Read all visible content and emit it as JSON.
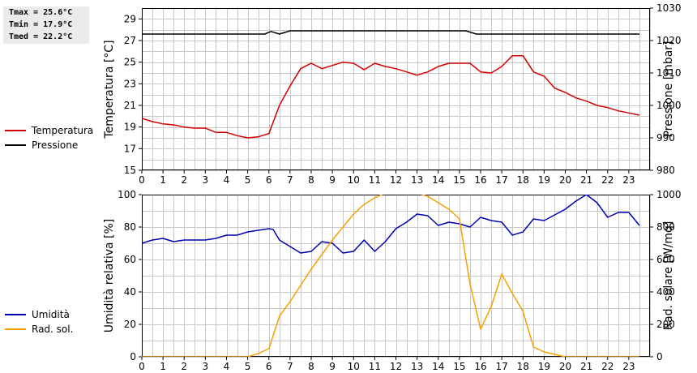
{
  "stats": {
    "tmax": "Tmax = 25.6°C",
    "tmin": "Tmin = 17.9°C",
    "tmed": "Tmed = 22.2°C"
  },
  "colors": {
    "temperatura": "#d40000",
    "pressione": "#000000",
    "umidita": "#0000b4",
    "rad_sol": "#f5a000",
    "grid": "#c8c8c8"
  },
  "legend_top": [
    {
      "label": "Temperatura",
      "color": "#d40000"
    },
    {
      "label": "Pressione",
      "color": "#000000"
    }
  ],
  "legend_bottom": [
    {
      "label": "Umidità",
      "color": "#0000b4"
    },
    {
      "label": "Rad. sol.",
      "color": "#f5a000"
    }
  ],
  "chart_data": [
    {
      "type": "line",
      "title": "",
      "xlabel": "",
      "xlim": [
        0,
        24
      ],
      "x_ticks": [
        0,
        1,
        2,
        3,
        4,
        5,
        6,
        7,
        8,
        9,
        10,
        11,
        12,
        13,
        14,
        15,
        16,
        17,
        18,
        19,
        20,
        21,
        22,
        23
      ],
      "ylabel_left": "Temperatura [°C]",
      "ylim_left": [
        15,
        30
      ],
      "yticks_left": [
        15,
        17,
        19,
        21,
        23,
        25,
        27,
        29
      ],
      "ylabel_right": "Pressione [mbar]",
      "ylim_right": [
        980,
        1030
      ],
      "yticks_right": [
        980,
        990,
        1000,
        1010,
        1020,
        1030
      ],
      "grid": true,
      "series": [
        {
          "name": "Temperatura",
          "axis": "left",
          "color": "#d40000",
          "points": [
            [
              0,
              19.8
            ],
            [
              0.5,
              19.5
            ],
            [
              1,
              19.3
            ],
            [
              1.5,
              19.2
            ],
            [
              2,
              19.0
            ],
            [
              2.5,
              18.9
            ],
            [
              3,
              18.9
            ],
            [
              3.5,
              18.5
            ],
            [
              4,
              18.5
            ],
            [
              4.5,
              18.2
            ],
            [
              5,
              18.0
            ],
            [
              5.5,
              18.1
            ],
            [
              6,
              18.4
            ],
            [
              6.5,
              21.0
            ],
            [
              7,
              22.8
            ],
            [
              7.5,
              24.4
            ],
            [
              8,
              24.9
            ],
            [
              8.5,
              24.4
            ],
            [
              9,
              24.7
            ],
            [
              9.5,
              25.0
            ],
            [
              10,
              24.9
            ],
            [
              10.5,
              24.3
            ],
            [
              11,
              24.9
            ],
            [
              11.5,
              24.6
            ],
            [
              12,
              24.4
            ],
            [
              12.5,
              24.1
            ],
            [
              13,
              23.8
            ],
            [
              13.5,
              24.1
            ],
            [
              14,
              24.6
            ],
            [
              14.5,
              24.9
            ],
            [
              15,
              24.9
            ],
            [
              15.5,
              24.9
            ],
            [
              16,
              24.1
            ],
            [
              16.5,
              24.0
            ],
            [
              17,
              24.6
            ],
            [
              17.5,
              25.6
            ],
            [
              18,
              25.6
            ],
            [
              18.5,
              24.1
            ],
            [
              19,
              23.7
            ],
            [
              19.5,
              22.6
            ],
            [
              20,
              22.2
            ],
            [
              20.5,
              21.7
            ],
            [
              21,
              21.4
            ],
            [
              21.5,
              21.0
            ],
            [
              22,
              20.8
            ],
            [
              22.5,
              20.5
            ],
            [
              23,
              20.3
            ],
            [
              23.5,
              20.1
            ]
          ]
        },
        {
          "name": "Pressione",
          "axis": "right",
          "color": "#000000",
          "points": [
            [
              0,
              1022
            ],
            [
              5.8,
              1022
            ],
            [
              6.1,
              1022.8
            ],
            [
              6.5,
              1022
            ],
            [
              7,
              1023
            ],
            [
              15.3,
              1023
            ],
            [
              15.8,
              1022
            ],
            [
              23.5,
              1022
            ]
          ]
        }
      ]
    },
    {
      "type": "line",
      "title": "",
      "xlabel": "",
      "xlim": [
        0,
        24
      ],
      "x_ticks": [
        0,
        1,
        2,
        3,
        4,
        5,
        6,
        7,
        8,
        9,
        10,
        11,
        12,
        13,
        14,
        15,
        16,
        17,
        18,
        19,
        20,
        21,
        22,
        23
      ],
      "ylabel_left": "Umidità relativa [%]",
      "ylim_left": [
        0,
        100
      ],
      "yticks_left": [
        0,
        20,
        40,
        60,
        80,
        100
      ],
      "ylabel_right": "Rad. solare [W/mq]",
      "ylim_right": [
        0,
        1000
      ],
      "yticks_right": [
        0,
        200,
        400,
        600,
        800,
        1000
      ],
      "grid": true,
      "series": [
        {
          "name": "Umidità",
          "axis": "left",
          "color": "#0000b4",
          "points": [
            [
              0,
              70
            ],
            [
              0.5,
              72
            ],
            [
              1,
              73
            ],
            [
              1.5,
              71
            ],
            [
              2,
              72
            ],
            [
              3,
              72
            ],
            [
              3.5,
              73
            ],
            [
              4,
              75
            ],
            [
              4.5,
              75
            ],
            [
              5,
              77
            ],
            [
              5.5,
              78
            ],
            [
              6,
              79
            ],
            [
              6.2,
              78.5
            ],
            [
              6.5,
              72
            ],
            [
              7,
              68
            ],
            [
              7.5,
              64
            ],
            [
              8,
              65
            ],
            [
              8.5,
              71
            ],
            [
              9,
              70
            ],
            [
              9.5,
              64
            ],
            [
              10,
              65
            ],
            [
              10.5,
              72
            ],
            [
              11,
              65
            ],
            [
              11.5,
              71
            ],
            [
              12,
              79
            ],
            [
              12.5,
              83
            ],
            [
              13,
              88
            ],
            [
              13.5,
              87
            ],
            [
              14,
              81
            ],
            [
              14.5,
              83
            ],
            [
              15,
              82
            ],
            [
              15.5,
              80
            ],
            [
              16,
              86
            ],
            [
              16.5,
              84
            ],
            [
              17,
              83
            ],
            [
              17.5,
              75
            ],
            [
              18,
              77
            ],
            [
              18.5,
              85
            ],
            [
              19,
              84
            ],
            [
              20,
              91
            ],
            [
              20.5,
              96
            ],
            [
              21,
              100
            ],
            [
              21.5,
              95
            ],
            [
              22,
              86
            ],
            [
              22.5,
              89
            ],
            [
              23,
              89
            ],
            [
              23.5,
              81
            ]
          ]
        },
        {
          "name": "Rad. sol.",
          "axis": "right",
          "color": "#f5a000",
          "points": [
            [
              0,
              0
            ],
            [
              5,
              0
            ],
            [
              5.5,
              20
            ],
            [
              6,
              50
            ],
            [
              6.5,
              250
            ],
            [
              7,
              340
            ],
            [
              7.5,
              440
            ],
            [
              8,
              540
            ],
            [
              8.5,
              630
            ],
            [
              9,
              720
            ],
            [
              9.5,
              800
            ],
            [
              10,
              880
            ],
            [
              10.5,
              940
            ],
            [
              11,
              980
            ],
            [
              11.5,
              1010
            ],
            [
              12,
              1030
            ],
            [
              12.5,
              1030
            ],
            [
              13,
              1010
            ],
            [
              13.5,
              990
            ],
            [
              14,
              950
            ],
            [
              14.5,
              910
            ],
            [
              15,
              850
            ],
            [
              15.5,
              450
            ],
            [
              16,
              170
            ],
            [
              16.5,
              310
            ],
            [
              17,
              510
            ],
            [
              17.5,
              390
            ],
            [
              18,
              280
            ],
            [
              18.5,
              60
            ],
            [
              19,
              30
            ],
            [
              20,
              0
            ],
            [
              23.5,
              0
            ]
          ]
        }
      ]
    }
  ]
}
